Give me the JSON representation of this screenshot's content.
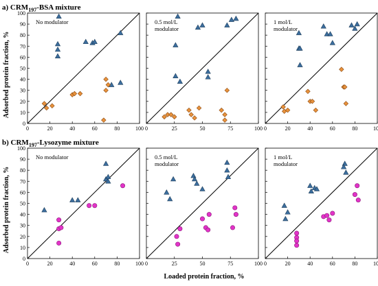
{
  "figure": {
    "ylabel": "Adsorbed protein fraction, %",
    "xlabel": "Loaded protein fraction, %"
  },
  "styles": {
    "triangle_fill": "#3c6e9e",
    "triangle_stroke": "#1f3f5c",
    "diamond_fill": "#e8923c",
    "diamond_stroke": "#8a4a12",
    "circle_fill": "#e233c8",
    "circle_stroke": "#8a1a78"
  },
  "chart_data": [
    {
      "type": "scatter",
      "row": 0,
      "col": 0,
      "row_title": {
        "prefix": "a)  CRM",
        "sub": "197",
        "suffix": "-BSA mixture"
      },
      "annotation": [
        "No modulator"
      ],
      "xlim": [
        0,
        100
      ],
      "ylim": [
        0,
        100
      ],
      "xticks": [
        "0",
        "20",
        "40",
        "60",
        "80",
        "100"
      ],
      "yticks": [
        "0",
        "10",
        "20",
        "30",
        "40",
        "50",
        "60",
        "70",
        "80",
        "90",
        "100"
      ],
      "series": [
        {
          "marker": "triangle",
          "points": [
            [
              28,
              97
            ],
            [
              27,
              72
            ],
            [
              27,
              67
            ],
            [
              27,
              61
            ],
            [
              52,
              74
            ],
            [
              58,
              73
            ],
            [
              60,
              74
            ],
            [
              83,
              82
            ],
            [
              83,
              37
            ],
            [
              75,
              35
            ]
          ]
        },
        {
          "marker": "diamond",
          "points": [
            [
              15,
              18
            ],
            [
              17,
              14
            ],
            [
              22,
              16
            ],
            [
              40,
              26
            ],
            [
              42,
              27
            ],
            [
              47,
              27
            ],
            [
              70,
              40
            ],
            [
              72,
              35
            ],
            [
              70,
              30
            ],
            [
              68,
              3
            ]
          ]
        }
      ]
    },
    {
      "type": "scatter",
      "row": 0,
      "col": 1,
      "annotation": [
        "0.5 mol/L",
        "modulator"
      ],
      "xlim": [
        0,
        100
      ],
      "ylim": [
        0,
        100
      ],
      "xticks": [
        "0",
        "25",
        "50",
        "75",
        "100"
      ],
      "yticks": [],
      "series": [
        {
          "marker": "triangle",
          "points": [
            [
              28,
              97
            ],
            [
              26,
              71
            ],
            [
              26,
              43
            ],
            [
              30,
              38
            ],
            [
              46,
              87
            ],
            [
              50,
              89
            ],
            [
              55,
              42
            ],
            [
              55,
              47
            ],
            [
              72,
              89
            ],
            [
              76,
              94
            ],
            [
              80,
              95
            ]
          ]
        },
        {
          "marker": "diamond",
          "points": [
            [
              16,
              6
            ],
            [
              19,
              8
            ],
            [
              22,
              8
            ],
            [
              25,
              6
            ],
            [
              38,
              12
            ],
            [
              40,
              8
            ],
            [
              43,
              5
            ],
            [
              47,
              14
            ],
            [
              67,
              12
            ],
            [
              70,
              8
            ],
            [
              70,
              3
            ],
            [
              72,
              30
            ]
          ]
        }
      ]
    },
    {
      "type": "scatter",
      "row": 0,
      "col": 2,
      "annotation": [
        "1 mol/L",
        "modulator"
      ],
      "xlim": [
        0,
        100
      ],
      "ylim": [
        0,
        100
      ],
      "xticks": [
        "0",
        "20",
        "40",
        "60",
        "80",
        "100"
      ],
      "yticks": [],
      "series": [
        {
          "marker": "triangle",
          "points": [
            [
              30,
              82
            ],
            [
              30,
              68
            ],
            [
              31,
              68
            ],
            [
              31,
              53
            ],
            [
              52,
              88
            ],
            [
              55,
              81
            ],
            [
              58,
              81
            ],
            [
              60,
              73
            ],
            [
              77,
              89
            ],
            [
              80,
              86
            ],
            [
              82,
              90
            ]
          ]
        },
        {
          "marker": "diamond",
          "points": [
            [
              16,
              15
            ],
            [
              17,
              11
            ],
            [
              20,
              12
            ],
            [
              38,
              29
            ],
            [
              40,
              20
            ],
            [
              42,
              20
            ],
            [
              45,
              12
            ],
            [
              68,
              49
            ],
            [
              70,
              33
            ],
            [
              71,
              33
            ],
            [
              72,
              18
            ]
          ]
        }
      ]
    },
    {
      "type": "scatter",
      "row": 1,
      "col": 0,
      "row_title": {
        "prefix": "b)  CRM",
        "sub": "197",
        "suffix": "-Lysozyme mixture"
      },
      "annotation": [
        "No modulator"
      ],
      "xlim": [
        0,
        100
      ],
      "ylim": [
        0,
        100
      ],
      "xticks": [
        "0",
        "20",
        "40",
        "60",
        "80",
        "100"
      ],
      "yticks": [
        "0",
        "10",
        "20",
        "30",
        "40",
        "50",
        "60",
        "70",
        "80",
        "90",
        "100"
      ],
      "series": [
        {
          "marker": "triangle",
          "points": [
            [
              15,
              44
            ],
            [
              40,
              53
            ],
            [
              45,
              53
            ],
            [
              70,
              86
            ],
            [
              70,
              72
            ],
            [
              72,
              74
            ],
            [
              72,
              70
            ]
          ]
        },
        {
          "marker": "circle",
          "points": [
            [
              28,
              35
            ],
            [
              28,
              27
            ],
            [
              30,
              28
            ],
            [
              28,
              14
            ],
            [
              55,
              48
            ],
            [
              60,
              48
            ],
            [
              85,
              66
            ]
          ]
        }
      ]
    },
    {
      "type": "scatter",
      "row": 1,
      "col": 1,
      "annotation": [
        "0.5 mol/L",
        "modulator"
      ],
      "xlim": [
        0,
        100
      ],
      "ylim": [
        0,
        100
      ],
      "xticks": [
        "0",
        "25",
        "50",
        "75",
        "100"
      ],
      "yticks": [],
      "series": [
        {
          "marker": "triangle",
          "points": [
            [
              18,
              60
            ],
            [
              21,
              54
            ],
            [
              24,
              72
            ],
            [
              42,
              75
            ],
            [
              43,
              72
            ],
            [
              45,
              68
            ],
            [
              50,
              63
            ],
            [
              72,
              87
            ],
            [
              72,
              80
            ],
            [
              73,
              74
            ]
          ]
        },
        {
          "marker": "circle",
          "points": [
            [
              27,
              20
            ],
            [
              28,
              13
            ],
            [
              30,
              27
            ],
            [
              50,
              36
            ],
            [
              53,
              28
            ],
            [
              55,
              26
            ],
            [
              56,
              40
            ],
            [
              77,
              28
            ],
            [
              79,
              46
            ],
            [
              80,
              40
            ]
          ]
        }
      ]
    },
    {
      "type": "scatter",
      "row": 1,
      "col": 2,
      "annotation": [
        "1 mol/L",
        "modulator"
      ],
      "xlim": [
        0,
        100
      ],
      "ylim": [
        0,
        100
      ],
      "xticks": [
        "0",
        "20",
        "40",
        "60",
        "80",
        "100"
      ],
      "yticks": [],
      "series": [
        {
          "marker": "triangle",
          "points": [
            [
              17,
              48
            ],
            [
              18,
              36
            ],
            [
              20,
              42
            ],
            [
              40,
              66
            ],
            [
              41,
              61
            ],
            [
              44,
              64
            ],
            [
              46,
              63
            ],
            [
              71,
              86
            ],
            [
              70,
              83
            ],
            [
              72,
              78
            ]
          ]
        },
        {
          "marker": "circle",
          "points": [
            [
              28,
              23
            ],
            [
              28,
              19
            ],
            [
              28,
              16
            ],
            [
              28,
              12
            ],
            [
              52,
              38
            ],
            [
              55,
              39
            ],
            [
              57,
              35
            ],
            [
              60,
              41
            ],
            [
              80,
              58
            ],
            [
              82,
              66
            ],
            [
              83,
              53
            ]
          ]
        }
      ]
    }
  ]
}
